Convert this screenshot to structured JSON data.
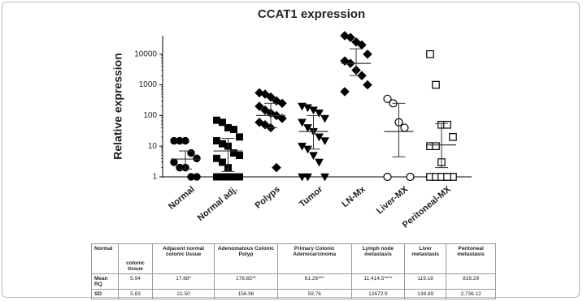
{
  "chart_data": {
    "type": "dot",
    "title": "CCAT1 expression",
    "y_label": "Relative expression",
    "categories": [
      "Normal",
      "Normal adj.",
      "Polyps",
      "Tumor",
      "LN-Mx",
      "Liver-MX",
      "Peritoneal-MX"
    ],
    "markers": [
      "circle",
      "square",
      "diamond",
      "triangle-down",
      "diamond",
      "circle-open",
      "square-open"
    ],
    "color": "#000000",
    "points": [
      [
        15,
        15,
        15,
        6,
        4,
        3,
        2,
        2,
        1,
        1
      ],
      [
        70,
        60,
        40,
        35,
        20,
        15,
        12,
        10,
        6,
        5,
        4,
        3,
        2,
        1,
        1,
        1,
        1,
        1
      ],
      [
        550,
        500,
        400,
        300,
        250,
        200,
        150,
        120,
        100,
        80,
        60,
        50,
        40,
        2
      ],
      [
        200,
        180,
        150,
        120,
        80,
        60,
        40,
        30,
        20,
        15,
        10,
        8,
        5,
        3,
        1,
        1,
        1
      ],
      [
        40000,
        35000,
        25000,
        20000,
        10000,
        6000,
        5000,
        3000,
        2000,
        1000,
        600
      ],
      [
        350,
        250,
        60,
        40,
        1,
        1
      ],
      [
        10000,
        1000,
        50,
        50,
        20,
        10,
        10,
        3,
        1,
        1,
        1,
        1,
        1,
        1
      ]
    ],
    "center": [
      3.8,
      7,
      100,
      30,
      5000,
      30,
      11
    ],
    "whiskers": [
      [
        1.8,
        7
      ],
      [
        1.5,
        18
      ],
      [
        40,
        250
      ],
      [
        8,
        100
      ],
      [
        2000,
        15000
      ],
      [
        4.5,
        250
      ],
      [
        2,
        55
      ]
    ],
    "log_y": true,
    "ylim": [
      1,
      40000
    ],
    "yticks": [
      1,
      10,
      100,
      1000,
      10000
    ]
  },
  "table": {
    "header": [
      "Normal",
      "colonic tissue",
      "Adjacent normal colonic tissue",
      "Adenomatous Colonic Polyp",
      "Primary Colonic Adenocarcinoma",
      "Lymph node metastasis",
      "Liver metastasis",
      "Peritoneal metastasis"
    ],
    "rows": [
      [
        "Mean RQ",
        "5.94",
        "17.68*",
        "178.65**",
        "61.26***",
        "11,414.5****",
        "119.18",
        "816.29"
      ],
      [
        "SD",
        "5.83",
        "21.50",
        "156.96",
        "59.76",
        "12672.9",
        "138.89",
        "2,736.12"
      ]
    ]
  }
}
